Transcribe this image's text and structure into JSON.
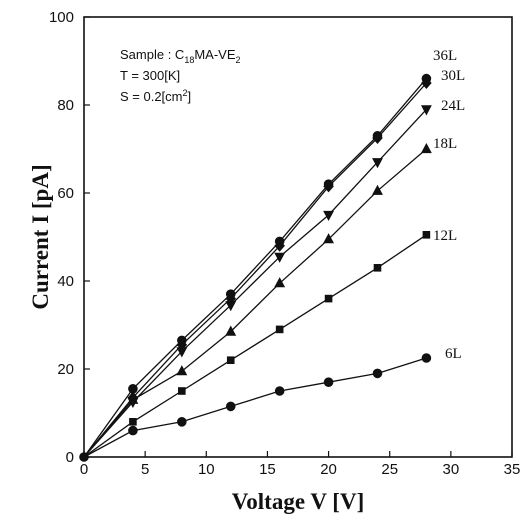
{
  "chart_data": {
    "type": "scatter",
    "xlabel": "Voltage V [V]",
    "ylabel": "Current I [pA]",
    "xlim": [
      0,
      35
    ],
    "ylim": [
      0,
      100
    ],
    "xticks": [
      "0",
      "5",
      "10",
      "15",
      "20",
      "25",
      "30",
      "35"
    ],
    "yticks": [
      "0",
      "20",
      "40",
      "60",
      "80",
      "100"
    ],
    "grid": false,
    "annotations": {
      "sample_prefix": "Sample : C",
      "sample_sub1": "18",
      "sample_mid": "MA-VE",
      "sample_sub2": "2",
      "temperature": "T = 300[K]",
      "area_prefix": "S = 0.2[cm",
      "area_sup": "2",
      "area_suffix": "]"
    },
    "series": [
      {
        "name": "6L",
        "marker": "circle",
        "x": [
          0,
          4,
          8,
          12,
          16,
          20,
          24,
          28
        ],
        "y": [
          0,
          6,
          8,
          11.5,
          15,
          17,
          19,
          22.5
        ]
      },
      {
        "name": "12L",
        "marker": "square",
        "x": [
          0,
          4,
          8,
          12,
          16,
          20,
          24,
          28
        ],
        "y": [
          0,
          8,
          15,
          22,
          29,
          36,
          43,
          50.5
        ]
      },
      {
        "name": "18L",
        "marker": "triangle-up",
        "x": [
          0,
          4,
          8,
          12,
          16,
          20,
          24,
          28
        ],
        "y": [
          0,
          13,
          19.5,
          28.5,
          39.5,
          49.5,
          60.5,
          70
        ]
      },
      {
        "name": "24L",
        "marker": "triangle-down",
        "x": [
          0,
          4,
          8,
          12,
          16,
          20,
          24,
          28
        ],
        "y": [
          0,
          12.5,
          24,
          34.5,
          45.5,
          55,
          67,
          79
        ]
      },
      {
        "name": "30L",
        "marker": "diamond",
        "x": [
          0,
          4,
          8,
          12,
          16,
          20,
          24,
          28
        ],
        "y": [
          0,
          13.5,
          25.5,
          36,
          48,
          61.5,
          72.5,
          85
        ]
      },
      {
        "name": "36L",
        "marker": "circle",
        "x": [
          0,
          4,
          8,
          12,
          16,
          20,
          24,
          28
        ],
        "y": [
          0,
          15.5,
          26.5,
          37,
          49,
          62,
          73,
          86
        ]
      }
    ]
  }
}
